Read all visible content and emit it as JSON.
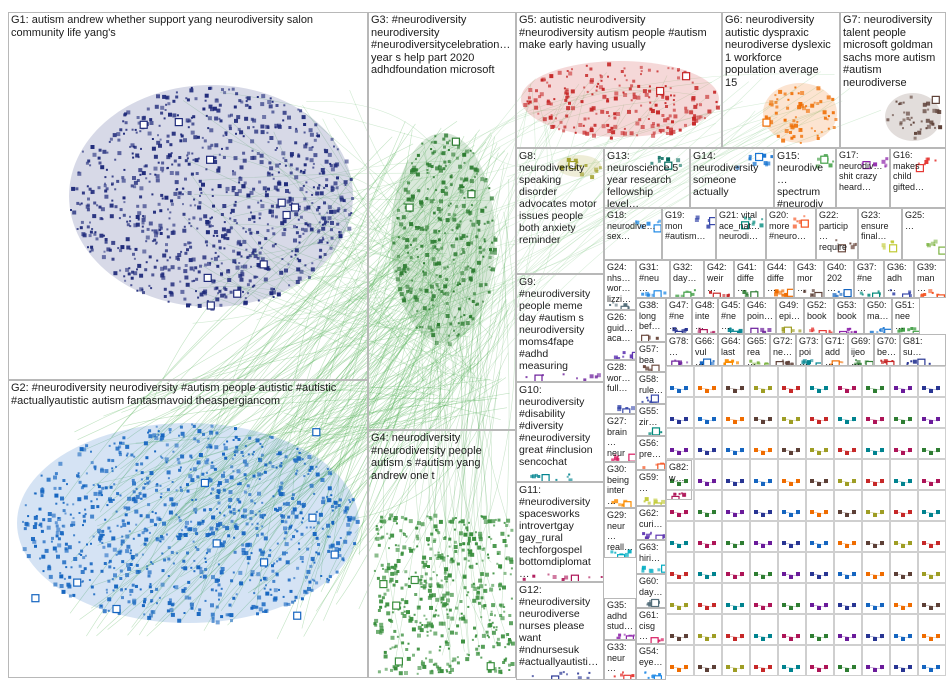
{
  "groups": [
    {
      "id": "G1",
      "text": "G1: autism andrew whether support yang neurodiversity salon\ncommunity life yang's",
      "color": "#1f2a7a"
    },
    {
      "id": "G2",
      "text": "G2: #neurodiversity neurodiversity #autism people autistic #autistic\n#actuallyautistic autism fantasmavoid theaspergiancom",
      "color": "#1565c0"
    },
    {
      "id": "G3",
      "text": "G3: #neurodiversity\nneurodiversity\n#neurodiversitycelebration…\nyear s help part 2020\nadhdfoundation microsoft",
      "color": "#2e7d32"
    },
    {
      "id": "G4",
      "text": "G4: neurodiversity\n#neurodiversity people\nautism s #autism yang\nandrew one t",
      "color": "#388e3c"
    },
    {
      "id": "G5",
      "text": "G5: autistic neurodiversity\n#neurodiversity autism people #autism\nmake early having usually",
      "color": "#c62828"
    },
    {
      "id": "G6",
      "text": "G6: neurodiversity\nautistic dyspraxic\nneurodiverse dyslexic\n1 workforce\npopulation average\n15",
      "color": "#ef6c00"
    },
    {
      "id": "G7",
      "text": "G7: neurodiversity\ntalent people\nmicrosoft goldman\nsachs more autism\n#autism\nneurodiverse",
      "color": "#5d4037"
    },
    {
      "id": "G8",
      "text": "G8:\nneurodiversity\nspeaking\ndisorder\nadvocates motor\nissues people\nboth anxiety\nreminder",
      "color": "#9e9d24"
    },
    {
      "id": "G9",
      "text": "G9:\n#neurodiversity\npeople meme\nday #autism s\nneurodiversity\nmoms4fape\n#adhd\nmeasuring",
      "color": "#6a1b9a"
    },
    {
      "id": "G10",
      "text": "G10:\nneurodiversity\n#disability\n#diversity\n#neurodiversity\ngreat #inclusion\nsencochat",
      "color": "#00838f"
    },
    {
      "id": "G11",
      "text": "G11:\n#neurodiversity\nspacesworks\nintrovertgay\ngay_rural\ntechforgospel\nbottomdiplomat…",
      "color": "#ad1457"
    },
    {
      "id": "G12",
      "text": "G12:\n#neurodiversity\nneurodiverse\nnurses please\nwant\n#ndnursesuk\n#actuallyautisti…",
      "color": "#283593"
    },
    {
      "id": "G13",
      "text": "G13:\nneuroscience 5\nyear research\nfellowship level…",
      "color": "#00695c"
    },
    {
      "id": "G14",
      "text": "G14:\nneurodiversity\nsomeone\nactually",
      "color": "#1976d2"
    },
    {
      "id": "G15",
      "text": "G15:\nneurodive…\nspectrum\n#neurodiv…",
      "color": "#43a047"
    },
    {
      "id": "G16",
      "text": "G16:\nmakes\nchild\ngifted…",
      "color": "#e53935"
    },
    {
      "id": "G17",
      "text": "G17:\nneurodiv…\nshit crazy\nheard…",
      "color": "#8e24aa"
    },
    {
      "id": "G18",
      "text": "G18:\nneurodive…\nsex…",
      "color": "#1e88e5"
    },
    {
      "id": "G19",
      "text": "G19:\nmon\n#autism…",
      "color": "#3949ab"
    },
    {
      "id": "G20",
      "text": "G20:\nmore\n#neuro…",
      "color": "#f4511e"
    },
    {
      "id": "G21",
      "text": "G21: vital\nace_nat…\nneurodi…",
      "color": "#00897b"
    },
    {
      "id": "G22",
      "text": "G22:\nparticip…\nrequire…",
      "color": "#6d4c41"
    },
    {
      "id": "G23",
      "text": "G23:\nensure\nfinal…",
      "color": "#c0ca33"
    },
    {
      "id": "G24",
      "text": "G24:\nnhs…\nwor…\nlizzi…",
      "color": "#546e7a"
    },
    {
      "id": "G25",
      "text": "G25:\n…",
      "color": "#7cb342"
    },
    {
      "id": "G26",
      "text": "G26:\nguid…\naca…",
      "color": "#5e35b1"
    },
    {
      "id": "G27",
      "text": "G27:\nbrain…\nneur…",
      "color": "#d81b60"
    },
    {
      "id": "G28",
      "text": "G28:\nwor…\nfull…",
      "color": "#3949ab"
    },
    {
      "id": "G29",
      "text": "G29:\nneur…\nreall…",
      "color": "#00acc1"
    },
    {
      "id": "G30",
      "text": "G30:\nbeing\ninter…",
      "color": "#fb8c00"
    },
    {
      "id": "G31",
      "text": "G31:\n#neu…",
      "color": "#1e88e5"
    },
    {
      "id": "G32",
      "text": "G32:\nday…",
      "color": "#43a047"
    },
    {
      "id": "G33",
      "text": "G33:\nneur…",
      "color": "#e53935"
    },
    {
      "id": "G35",
      "text": "G35:\nadhd\nstud…",
      "color": "#8e24aa"
    },
    {
      "id": "G36",
      "text": "G36:\nadh…",
      "color": "#3949ab"
    },
    {
      "id": "G37",
      "text": "G37:\n#ne…",
      "color": "#00897b"
    },
    {
      "id": "G38",
      "text": "G38:\nlong\nbef…",
      "color": "#6d4c41"
    },
    {
      "id": "G39",
      "text": "G39:\nman…",
      "color": "#f4511e"
    },
    {
      "id": "G40",
      "text": "G40:\n202…",
      "color": "#1565c0"
    },
    {
      "id": "G41",
      "text": "G41:\ndiffe…",
      "color": "#2e7d32"
    },
    {
      "id": "G42",
      "text": "G42:\nweir…",
      "color": "#c62828"
    },
    {
      "id": "G43",
      "text": "G43:\nmor…",
      "color": "#5d4037"
    },
    {
      "id": "G44",
      "text": "G44:\ndiffe…",
      "color": "#ef6c00"
    },
    {
      "id": "G45",
      "text": "G45:\n#ne…",
      "color": "#00838f"
    },
    {
      "id": "G46",
      "text": "G46:\npoin…",
      "color": "#6a1b9a"
    },
    {
      "id": "G47",
      "text": "G47:\n#ne…",
      "color": "#283593"
    },
    {
      "id": "G48",
      "text": "G48:\ninte…",
      "color": "#ad1457"
    },
    {
      "id": "G49",
      "text": "G49:\nepi…",
      "color": "#9e9d24"
    },
    {
      "id": "G50",
      "text": "G50:\nma…",
      "color": "#1976d2"
    },
    {
      "id": "G51",
      "text": "G51:\nnee…",
      "color": "#43a047"
    },
    {
      "id": "G52",
      "text": "G52:\nbook",
      "color": "#e53935"
    },
    {
      "id": "G53",
      "text": "G53:\nbook",
      "color": "#8e24aa"
    },
    {
      "id": "G54",
      "text": "G54:\neye…",
      "color": "#1e88e5"
    },
    {
      "id": "G55",
      "text": "G55:\nzir…",
      "color": "#00897b"
    },
    {
      "id": "G56",
      "text": "G56:\npre…",
      "color": "#f4511e"
    },
    {
      "id": "G57",
      "text": "G57:\nbea…",
      "color": "#6d4c41"
    },
    {
      "id": "G58",
      "text": "G58:\nrule…",
      "color": "#3949ab"
    },
    {
      "id": "G59",
      "text": "G59:\n…",
      "color": "#c0ca33"
    },
    {
      "id": "G60",
      "text": "G60:\nday…",
      "color": "#546e7a"
    },
    {
      "id": "G61",
      "text": "G61:\ncisg…",
      "color": "#d81b60"
    },
    {
      "id": "G62",
      "text": "G62:\ncuri…",
      "color": "#5e35b1"
    },
    {
      "id": "G63",
      "text": "G63:\nhiri…",
      "color": "#00acc1"
    },
    {
      "id": "G64",
      "text": "G64:\nlast",
      "color": "#fb8c00"
    },
    {
      "id": "G65",
      "text": "G65:\nrea…",
      "color": "#7cb342"
    },
    {
      "id": "G66",
      "text": "G66:\nvul…",
      "color": "#1565c0"
    },
    {
      "id": "G69",
      "text": "G69:\nijeo…",
      "color": "#2e7d32"
    },
    {
      "id": "G70",
      "text": "G70:\nbe…",
      "color": "#c62828"
    },
    {
      "id": "G71",
      "text": "G71:\nadd…",
      "color": "#ef6c00"
    },
    {
      "id": "G72",
      "text": "G72:\nne…",
      "color": "#5d4037"
    },
    {
      "id": "G73",
      "text": "G73:\npoi…",
      "color": "#00838f"
    },
    {
      "id": "G78",
      "text": "G78:\n…",
      "color": "#6a1b9a"
    },
    {
      "id": "G81",
      "text": "G81:\nsu…",
      "color": "#283593"
    },
    {
      "id": "G82",
      "text": "G82:\nw…",
      "color": "#ad1457"
    }
  ]
}
